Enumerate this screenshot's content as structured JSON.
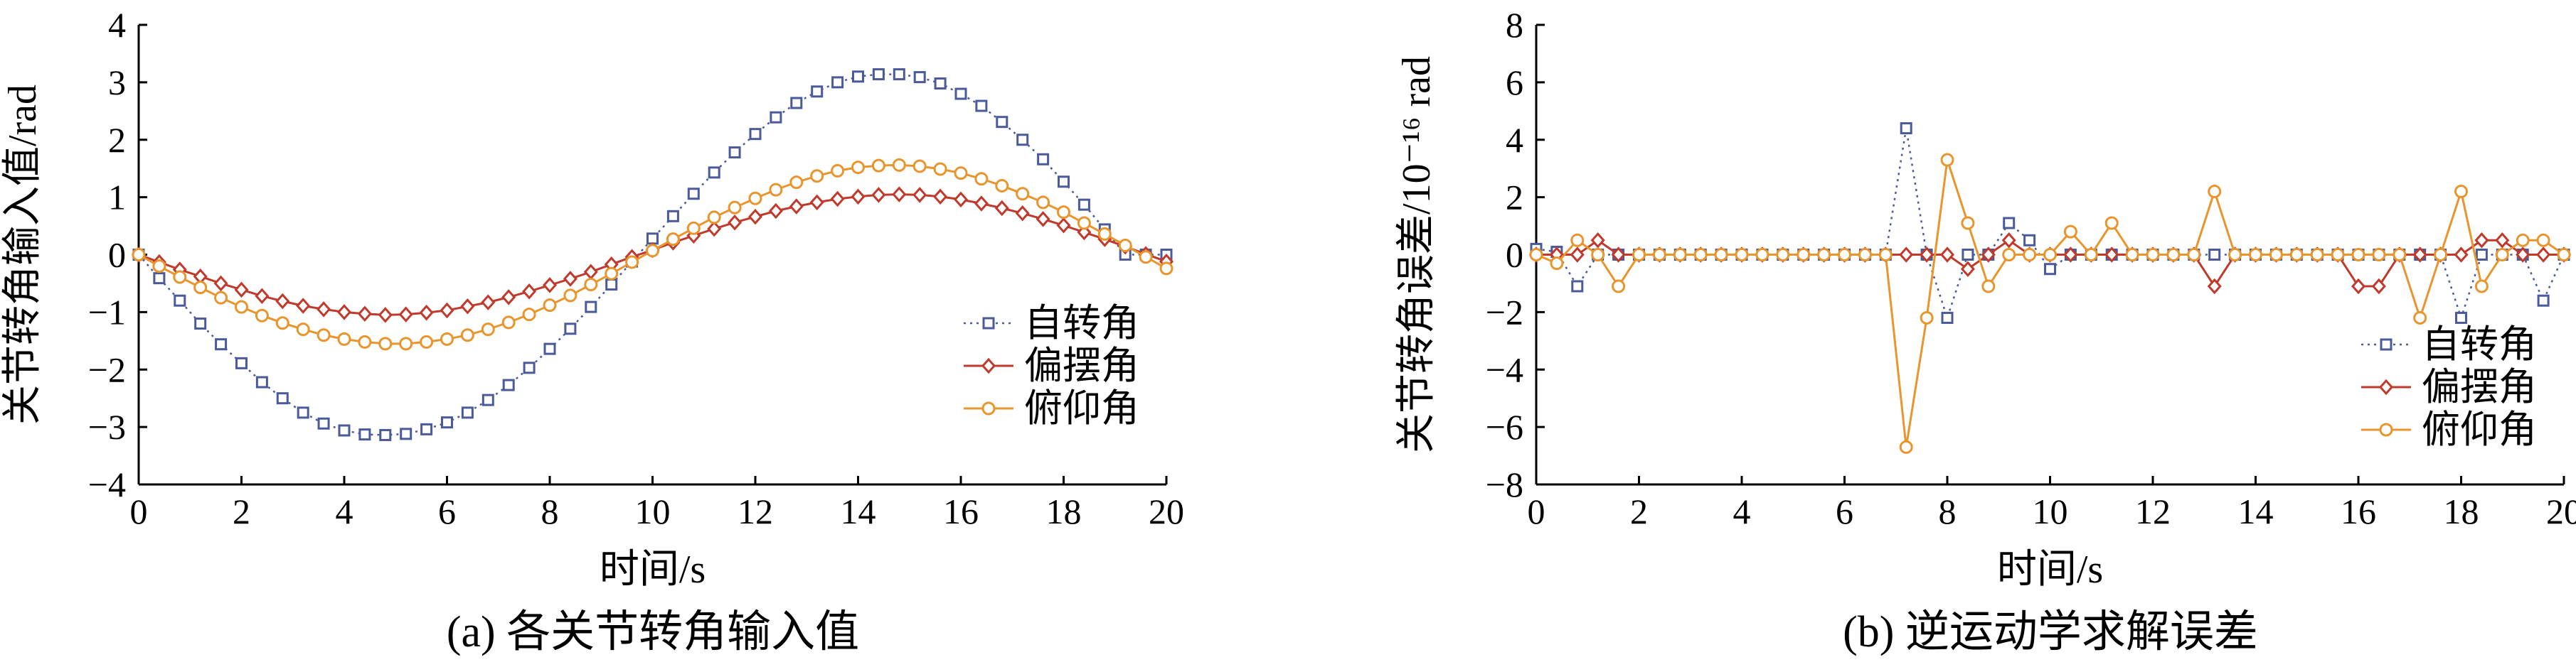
{
  "chart_data": [
    {
      "id": "a",
      "type": "line",
      "caption": "(a)  各关节转角输入值",
      "xlabel": "时间/s",
      "ylabel": "关节转角输入值/rad",
      "xlim": [
        0,
        20
      ],
      "ylim": [
        -4,
        4
      ],
      "xticks": [
        0,
        2,
        4,
        6,
        8,
        10,
        12,
        14,
        16,
        18,
        20
      ],
      "yticks": [
        -4,
        -3,
        -2,
        -1,
        0,
        1,
        2,
        3,
        4
      ],
      "legend_position": "right",
      "series": [
        {
          "name": "自转角",
          "color": "#4a5a9a",
          "marker": "square",
          "line": "dotted",
          "x": [
            0,
            0.4,
            0.8,
            1.2,
            1.6,
            2.0,
            2.4,
            2.8,
            3.2,
            3.6,
            4.0,
            4.4,
            4.8,
            5.2,
            5.6,
            6.0,
            6.4,
            6.8,
            7.2,
            7.6,
            8.0,
            8.4,
            8.8,
            9.2,
            9.6,
            10.0,
            10.4,
            10.8,
            11.2,
            11.6,
            12.0,
            12.4,
            12.8,
            13.2,
            13.6,
            14.0,
            14.4,
            14.8,
            15.2,
            15.6,
            16.0,
            16.4,
            16.8,
            17.2,
            17.6,
            18.0,
            18.4,
            18.8,
            19.2,
            19.6,
            20.0
          ],
          "y": [
            0,
            -0.41,
            -0.8,
            -1.2,
            -1.56,
            -1.89,
            -2.22,
            -2.5,
            -2.75,
            -2.94,
            -3.06,
            -3.13,
            -3.14,
            -3.12,
            -3.04,
            -2.92,
            -2.75,
            -2.53,
            -2.27,
            -1.97,
            -1.64,
            -1.29,
            -0.91,
            -0.52,
            -0.12,
            0.28,
            0.67,
            1.06,
            1.43,
            1.78,
            2.1,
            2.39,
            2.64,
            2.84,
            3.0,
            3.1,
            3.14,
            3.14,
            3.09,
            2.98,
            2.8,
            2.59,
            2.31,
            2.0,
            1.66,
            1.27,
            0.87,
            0.44,
            0.0,
            0.0,
            0.0
          ]
        },
        {
          "name": "偏摆角",
          "color": "#c0392b",
          "marker": "diamond",
          "line": "solid",
          "x": [
            0,
            0.4,
            0.8,
            1.2,
            1.6,
            2.0,
            2.4,
            2.8,
            3.2,
            3.6,
            4.0,
            4.4,
            4.8,
            5.2,
            5.6,
            6.0,
            6.4,
            6.8,
            7.2,
            7.6,
            8.0,
            8.4,
            8.8,
            9.2,
            9.6,
            10.0,
            10.4,
            10.8,
            11.2,
            11.6,
            12.0,
            12.4,
            12.8,
            13.2,
            13.6,
            14.0,
            14.4,
            14.8,
            15.2,
            15.6,
            16.0,
            16.4,
            16.8,
            17.2,
            17.6,
            18.0,
            18.4,
            18.8,
            19.2,
            19.6,
            20.0
          ],
          "y": [
            0,
            -0.13,
            -0.26,
            -0.38,
            -0.5,
            -0.61,
            -0.72,
            -0.81,
            -0.89,
            -0.95,
            -1.0,
            -1.03,
            -1.05,
            -1.04,
            -1.01,
            -0.97,
            -0.9,
            -0.83,
            -0.74,
            -0.64,
            -0.53,
            -0.42,
            -0.3,
            -0.17,
            -0.04,
            0.08,
            0.21,
            0.33,
            0.45,
            0.56,
            0.66,
            0.76,
            0.84,
            0.91,
            0.97,
            1.01,
            1.04,
            1.05,
            1.04,
            1.01,
            0.96,
            0.89,
            0.81,
            0.72,
            0.62,
            0.51,
            0.39,
            0.27,
            0.14,
            0.01,
            -0.12
          ]
        },
        {
          "name": "俯仰角",
          "color": "#e8952e",
          "marker": "circle",
          "line": "solid",
          "x": [
            0,
            0.4,
            0.8,
            1.2,
            1.6,
            2.0,
            2.4,
            2.8,
            3.2,
            3.6,
            4.0,
            4.4,
            4.8,
            5.2,
            5.6,
            6.0,
            6.4,
            6.8,
            7.2,
            7.6,
            8.0,
            8.4,
            8.8,
            9.2,
            9.6,
            10.0,
            10.4,
            10.8,
            11.2,
            11.6,
            12.0,
            12.4,
            12.8,
            13.2,
            13.6,
            14.0,
            14.4,
            14.8,
            15.2,
            15.6,
            16.0,
            16.4,
            16.8,
            17.2,
            17.6,
            18.0,
            18.4,
            18.8,
            19.2,
            19.6,
            20.0
          ],
          "y": [
            0,
            -0.2,
            -0.39,
            -0.57,
            -0.75,
            -0.91,
            -1.06,
            -1.19,
            -1.3,
            -1.4,
            -1.47,
            -1.52,
            -1.55,
            -1.55,
            -1.52,
            -1.47,
            -1.4,
            -1.3,
            -1.18,
            -1.04,
            -0.88,
            -0.71,
            -0.52,
            -0.33,
            -0.13,
            0.07,
            0.27,
            0.46,
            0.65,
            0.82,
            0.98,
            1.13,
            1.26,
            1.37,
            1.46,
            1.52,
            1.55,
            1.56,
            1.54,
            1.49,
            1.42,
            1.32,
            1.2,
            1.06,
            0.91,
            0.74,
            0.55,
            0.36,
            0.16,
            -0.04,
            -0.24
          ]
        }
      ]
    },
    {
      "id": "b",
      "type": "line",
      "caption": "(b) 逆运动学求解误差",
      "xlabel": "时间/s",
      "ylabel": "关节转角误差/10⁻¹⁶ rad",
      "xlim": [
        0,
        20
      ],
      "ylim": [
        -8,
        8
      ],
      "xticks": [
        0,
        2,
        4,
        6,
        8,
        10,
        12,
        14,
        16,
        18,
        20
      ],
      "yticks": [
        -8,
        -6,
        -4,
        -2,
        0,
        2,
        4,
        6,
        8
      ],
      "legend_position": "lower-right",
      "series": [
        {
          "name": "自转角",
          "color": "#4a5a9a",
          "marker": "square",
          "line": "dotted",
          "x": [
            0,
            0.4,
            0.8,
            1.2,
            1.6,
            2.0,
            2.4,
            2.8,
            3.2,
            3.6,
            4.0,
            4.4,
            4.8,
            5.2,
            5.6,
            6.0,
            6.4,
            6.8,
            7.2,
            7.6,
            8.0,
            8.4,
            8.8,
            9.2,
            9.6,
            10.0,
            10.4,
            10.8,
            11.2,
            11.6,
            12.0,
            12.4,
            12.8,
            13.2,
            13.6,
            14.0,
            14.4,
            14.8,
            15.2,
            15.6,
            16.0,
            16.4,
            16.8,
            17.2,
            17.6,
            18.0,
            18.4,
            18.8,
            19.2,
            19.6,
            20.0
          ],
          "y": [
            0.2,
            0.1,
            -1.1,
            0.0,
            0.0,
            0,
            0,
            0,
            0,
            0,
            0,
            0,
            0,
            0,
            0,
            0,
            0,
            0,
            4.4,
            0,
            -2.2,
            0,
            0,
            1.1,
            0.5,
            -0.5,
            0,
            0,
            0,
            0,
            0,
            0,
            0,
            0,
            0,
            0,
            0,
            0,
            0,
            0,
            0,
            0,
            0,
            0,
            0,
            -2.2,
            0,
            0,
            0,
            -1.6,
            0
          ]
        },
        {
          "name": "偏摆角",
          "color": "#c0392b",
          "marker": "diamond",
          "line": "solid",
          "x": [
            0,
            0.4,
            0.8,
            1.2,
            1.6,
            2.0,
            2.4,
            2.8,
            3.2,
            3.6,
            4.0,
            4.4,
            4.8,
            5.2,
            5.6,
            6.0,
            6.4,
            6.8,
            7.2,
            7.6,
            8.0,
            8.4,
            8.8,
            9.2,
            9.6,
            10.0,
            10.4,
            10.8,
            11.2,
            11.6,
            12.0,
            12.4,
            12.8,
            13.2,
            13.6,
            14.0,
            14.4,
            14.8,
            15.2,
            15.6,
            16.0,
            16.4,
            16.8,
            17.2,
            17.6,
            18.0,
            18.4,
            18.8,
            19.2,
            19.6,
            20.0
          ],
          "y": [
            0,
            0,
            0,
            0.5,
            0,
            0,
            0,
            0,
            0,
            0,
            0,
            0,
            0,
            0,
            0,
            0,
            0,
            0,
            0,
            0,
            0,
            -0.5,
            0,
            0.5,
            0,
            0,
            0,
            0,
            0,
            0,
            0,
            0,
            0,
            -1.1,
            0,
            0,
            0,
            0,
            0,
            0,
            -1.1,
            -1.1,
            0,
            0,
            0,
            0,
            0.5,
            0.5,
            0,
            0,
            0
          ]
        },
        {
          "name": "俯仰角",
          "color": "#e8952e",
          "marker": "circle",
          "line": "solid",
          "x": [
            0,
            0.4,
            0.8,
            1.2,
            1.6,
            2.0,
            2.4,
            2.8,
            3.2,
            3.6,
            4.0,
            4.4,
            4.8,
            5.2,
            5.6,
            6.0,
            6.4,
            6.8,
            7.2,
            7.6,
            8.0,
            8.4,
            8.8,
            9.2,
            9.6,
            10.0,
            10.4,
            10.8,
            11.2,
            11.6,
            12.0,
            12.4,
            12.8,
            13.2,
            13.6,
            14.0,
            14.4,
            14.8,
            15.2,
            15.6,
            16.0,
            16.4,
            16.8,
            17.2,
            17.6,
            18.0,
            18.4,
            18.8,
            19.2,
            19.6,
            20.0
          ],
          "y": [
            0,
            -0.3,
            0.5,
            0,
            -1.1,
            0,
            0,
            0,
            0,
            0,
            0,
            0,
            0,
            0,
            0,
            0,
            0,
            0,
            -6.7,
            -2.2,
            3.3,
            1.1,
            -1.1,
            0,
            0,
            0,
            0.8,
            0,
            1.1,
            0,
            0,
            0,
            0,
            2.2,
            0,
            0,
            0,
            0,
            0,
            0,
            0,
            0,
            0,
            -2.2,
            0,
            2.2,
            -1.1,
            0,
            0.5,
            0.5,
            0
          ]
        }
      ]
    }
  ]
}
